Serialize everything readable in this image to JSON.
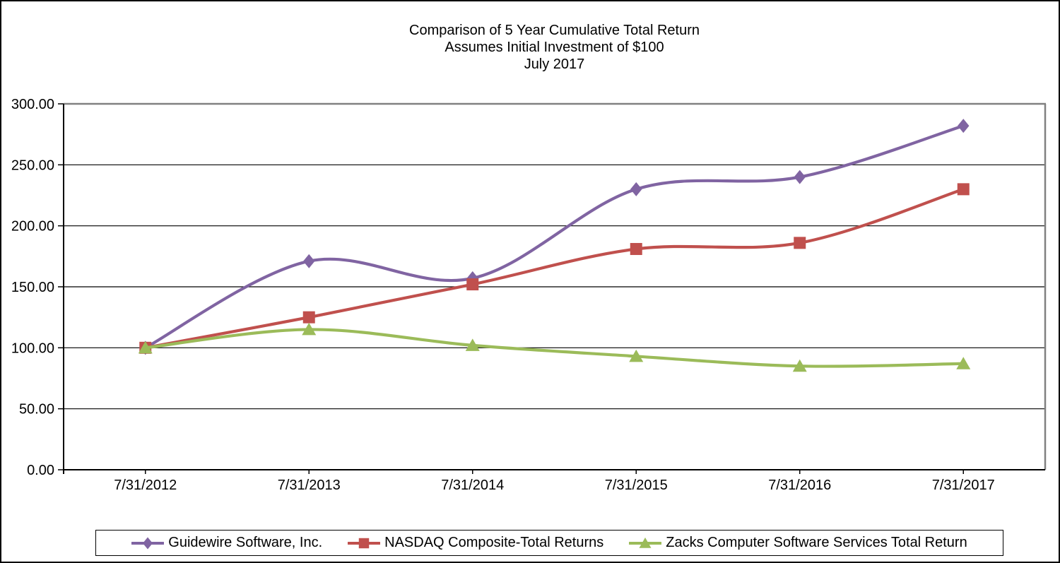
{
  "chart_data": {
    "type": "line",
    "title": "Comparison of 5 Year Cumulative Total Return",
    "subtitle": "Assumes Initial Investment of $100",
    "date_label": "July 2017",
    "categories": [
      "7/31/2012",
      "7/31/2013",
      "7/31/2014",
      "7/31/2015",
      "7/31/2016",
      "7/31/2017"
    ],
    "series": [
      {
        "name": "Guidewire Software, Inc.",
        "marker": "diamond",
        "color": "#8064A2",
        "values": [
          100.0,
          171,
          157,
          230,
          240,
          282
        ]
      },
      {
        "name": "NASDAQ Composite-Total Returns",
        "marker": "square",
        "color": "#C0504D",
        "values": [
          100.0,
          125,
          152,
          181,
          186,
          230
        ]
      },
      {
        "name": "Zacks Computer Software Services Total Return",
        "marker": "triangle",
        "color": "#9BBB59",
        "values": [
          100.0,
          115,
          102,
          93,
          85,
          87
        ]
      }
    ],
    "xlabel": "",
    "ylabel": "",
    "ylim": [
      0,
      300
    ],
    "ytick_step": 50,
    "ytick_labels": [
      "0.00",
      "50.00",
      "100.00",
      "150.00",
      "200.00",
      "250.00",
      "300.00"
    ],
    "grid": true,
    "smooth_lines": true,
    "legend_position": "bottom",
    "axis_color": "#000000",
    "gridline_color": "#000000",
    "plot_border_color": "#808080"
  }
}
